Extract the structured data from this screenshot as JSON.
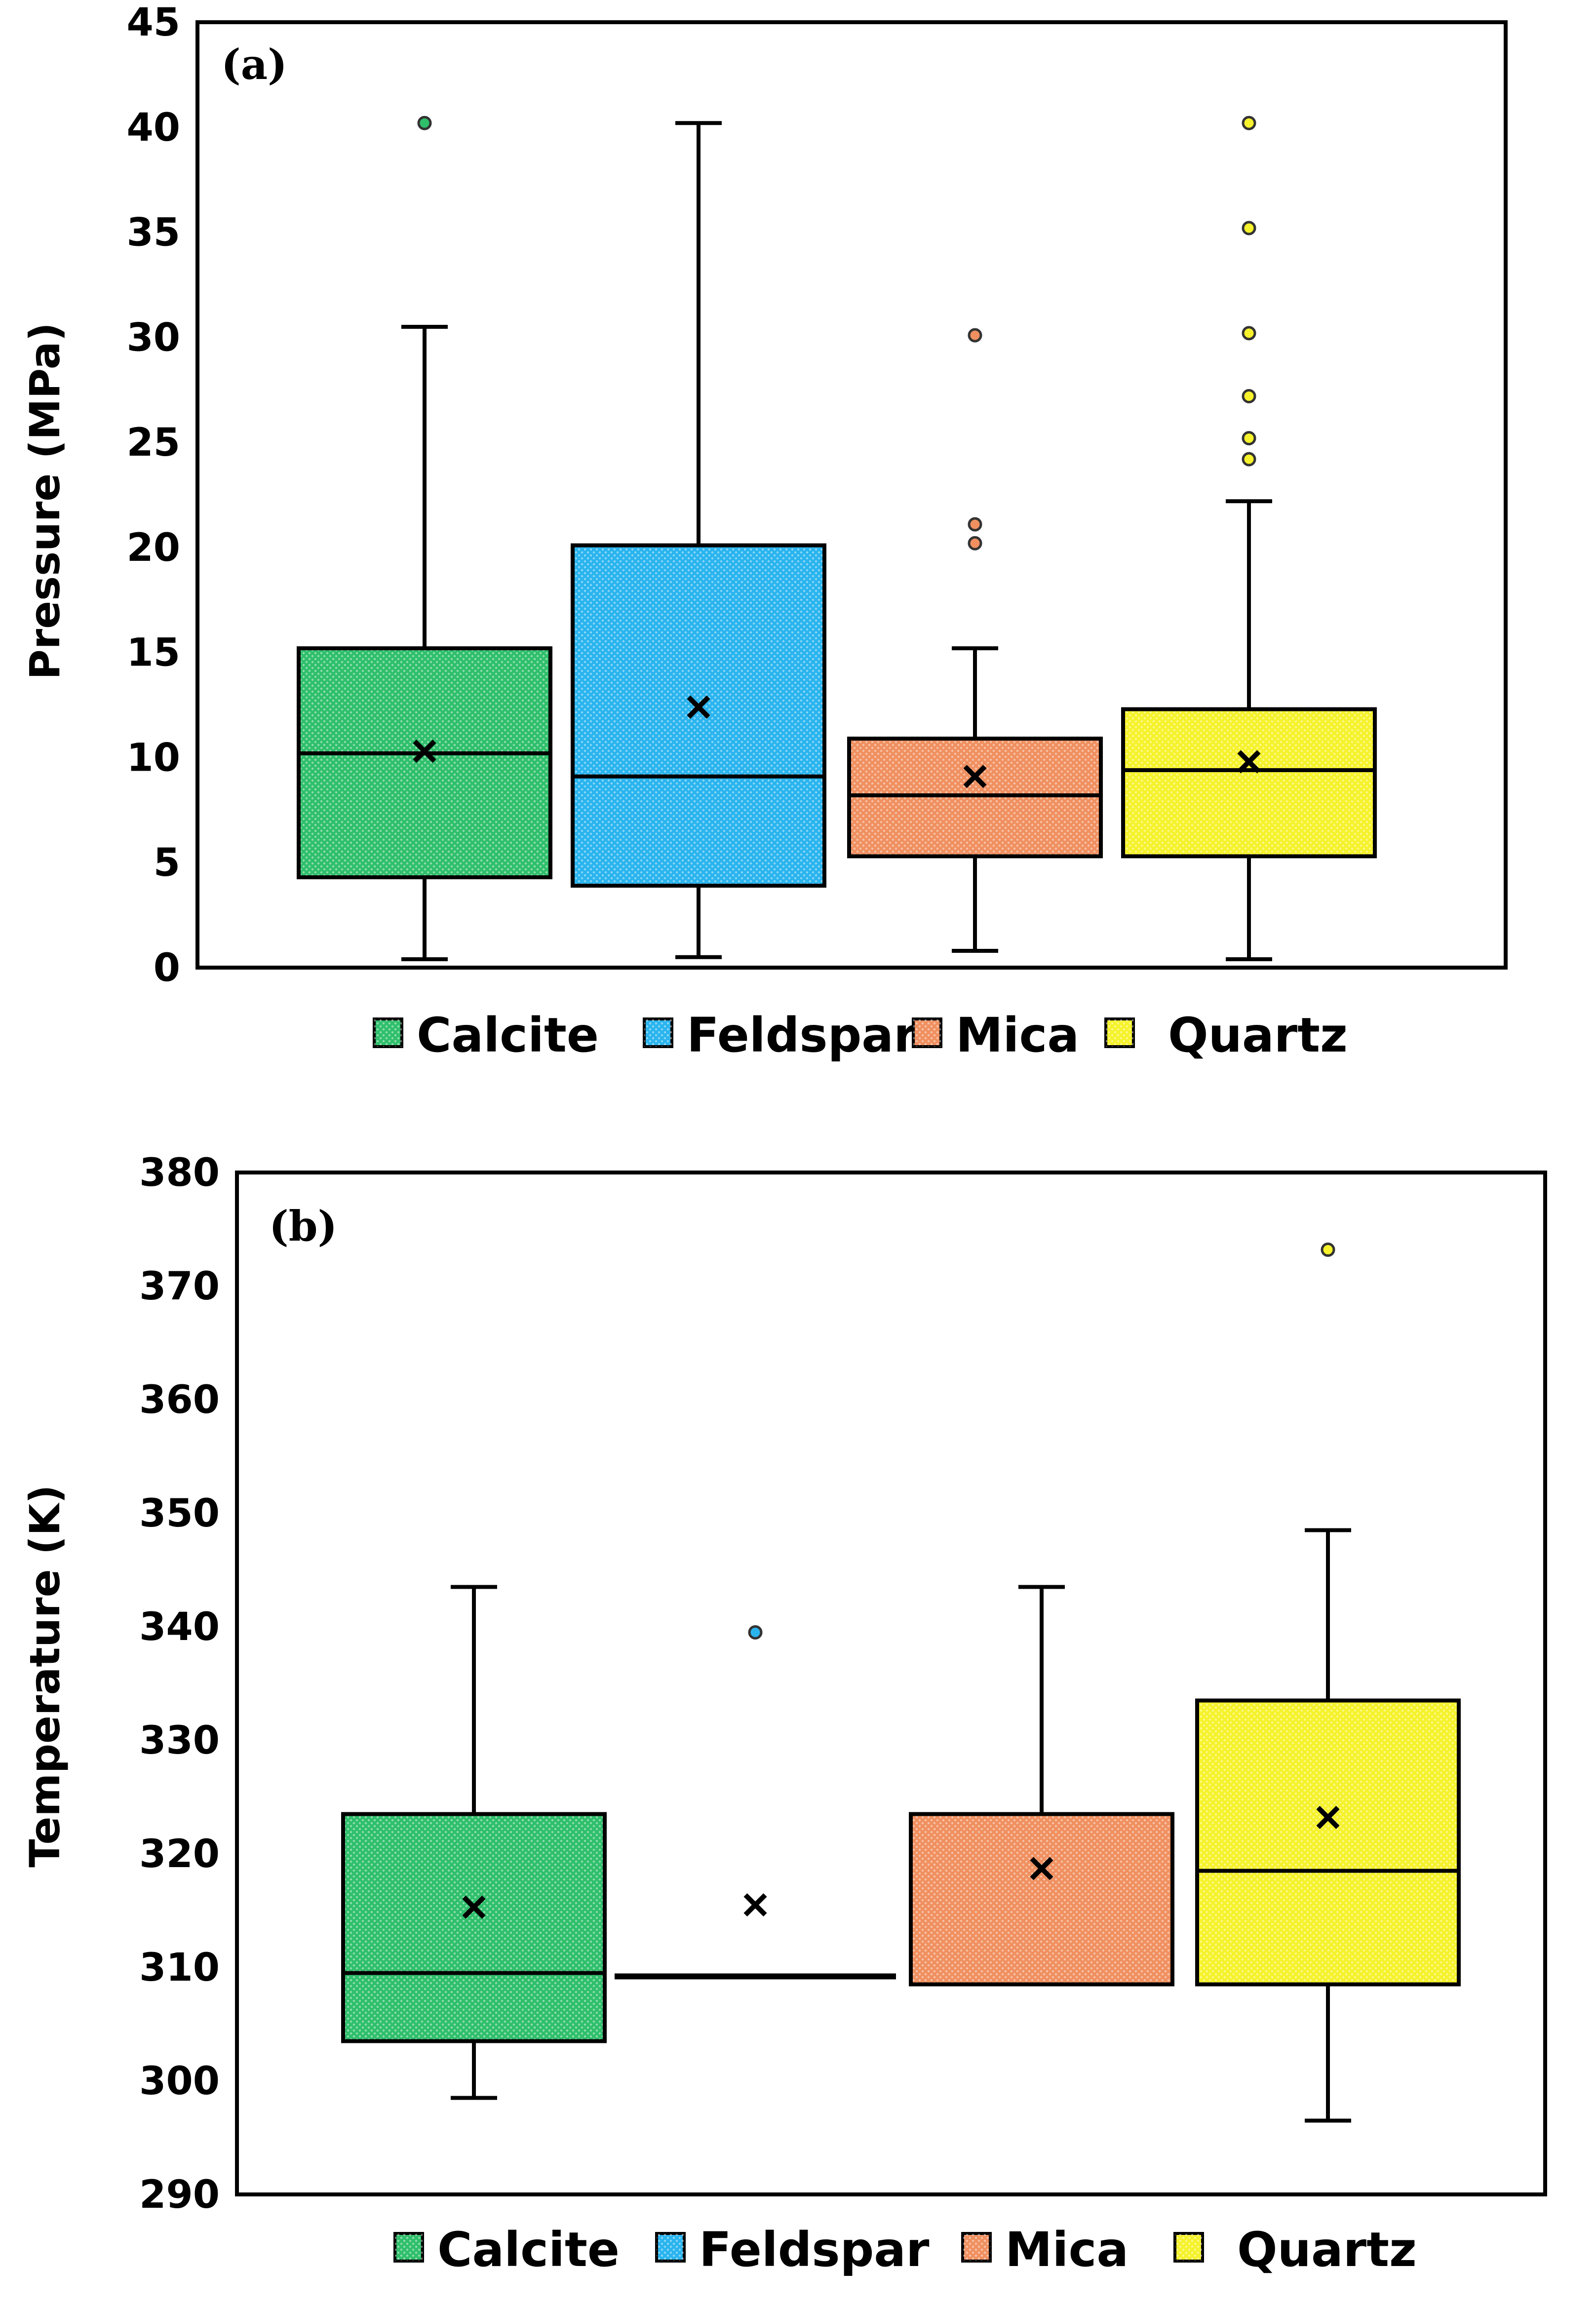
{
  "colors": {
    "calcite": "#2fbf6b",
    "feldspar": "#2ab4ee",
    "mica": "#f09060",
    "quartz": "#f6f22c"
  },
  "chart_data": [
    {
      "type": "box",
      "panel_label": "(a)",
      "ylabel": "Pressure (MPa)",
      "ylim": [
        0,
        45
      ],
      "yticks": [
        0,
        5,
        10,
        15,
        20,
        25,
        30,
        35,
        40,
        45
      ],
      "legend": [
        "Calcite",
        "Feldspar",
        "Mica",
        "Quartz"
      ],
      "legend_position": "bottom",
      "series": [
        {
          "name": "Calcite",
          "color_key": "calcite",
          "min": 0.4,
          "q1": 4.3,
          "median": 10.2,
          "q3": 15.2,
          "max": 30.5,
          "mean": 10.3,
          "outliers": [
            40.2
          ]
        },
        {
          "name": "Feldspar",
          "color_key": "feldspar",
          "min": 0.5,
          "q1": 3.9,
          "median": 9.1,
          "q3": 20.1,
          "max": 40.2,
          "mean": 12.4,
          "outliers": []
        },
        {
          "name": "Mica",
          "color_key": "mica",
          "min": 0.8,
          "q1": 5.3,
          "median": 8.2,
          "q3": 10.9,
          "max": 15.2,
          "mean": 9.1,
          "outliers": [
            20.2,
            21.1,
            30.1
          ]
        },
        {
          "name": "Quartz",
          "color_key": "quartz",
          "min": 0.4,
          "q1": 5.3,
          "median": 9.4,
          "q3": 12.3,
          "max": 22.2,
          "mean": 9.8,
          "outliers": [
            24.2,
            25.2,
            27.2,
            30.2,
            35.2,
            40.2
          ]
        }
      ]
    },
    {
      "type": "box",
      "panel_label": "(b)",
      "ylabel": "Temperature (K)",
      "ylim": [
        290,
        380
      ],
      "yticks": [
        290,
        300,
        310,
        320,
        330,
        340,
        350,
        360,
        370,
        380
      ],
      "legend": [
        "Calcite",
        "Feldspar",
        "Mica",
        "Quartz"
      ],
      "legend_position": "bottom",
      "series": [
        {
          "name": "Calcite",
          "color_key": "calcite",
          "min": 298.5,
          "q1": 303.5,
          "median": 309.5,
          "q3": 323.5,
          "max": 343.5,
          "mean": 315.3,
          "outliers": []
        },
        {
          "name": "Feldspar",
          "color_key": "feldspar",
          "min": 309.2,
          "q1": 309.2,
          "median": 309.2,
          "q3": 309.2,
          "max": 309.2,
          "mean": 315.5,
          "outliers": [
            339.5
          ]
        },
        {
          "name": "Mica",
          "color_key": "mica",
          "min": 308.5,
          "q1": 308.5,
          "median": 308.5,
          "q3": 323.5,
          "max": 343.5,
          "mean": 318.7,
          "outliers": []
        },
        {
          "name": "Quartz",
          "color_key": "quartz",
          "min": 296.5,
          "q1": 308.5,
          "median": 318.5,
          "q3": 333.5,
          "max": 348.5,
          "mean": 323.2,
          "outliers": [
            373.2
          ]
        }
      ]
    }
  ]
}
